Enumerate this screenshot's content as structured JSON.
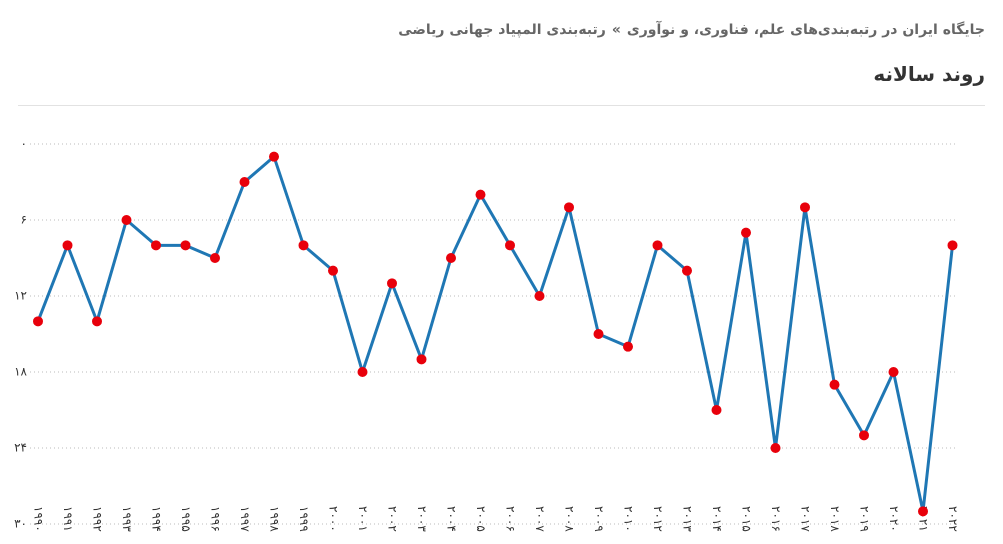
{
  "header": {
    "breadcrumb": [
      "جایگاه ایران در رتبه‌بندی‌های علم، فناوری، و نوآوری",
      "رتبه‌بندی المپیاد جهانی ریاضی"
    ],
    "separator": "»"
  },
  "chart_data": {
    "type": "line",
    "title": "روند سالانه",
    "categories": [
      {
        "value": 1990,
        "label": "۱۹۹۰"
      },
      {
        "value": 1991,
        "label": "۱۹۹۱"
      },
      {
        "value": 1992,
        "label": "۱۹۹۲"
      },
      {
        "value": 1993,
        "label": "۱۹۹۳"
      },
      {
        "value": 1994,
        "label": "۱۹۹۴"
      },
      {
        "value": 1995,
        "label": "۱۹۹۵"
      },
      {
        "value": 1996,
        "label": "۱۹۹۶"
      },
      {
        "value": 1997,
        "label": "۱۹۹۷"
      },
      {
        "value": 1998,
        "label": "۱۹۹۸"
      },
      {
        "value": 1999,
        "label": "۱۹۹۹"
      },
      {
        "value": 2000,
        "label": "۲۰۰۰"
      },
      {
        "value": 2001,
        "label": "۲۰۰۱"
      },
      {
        "value": 2002,
        "label": "۲۰۰۲"
      },
      {
        "value": 2003,
        "label": "۲۰۰۳"
      },
      {
        "value": 2004,
        "label": "۲۰۰۴"
      },
      {
        "value": 2005,
        "label": "۲۰۰۵"
      },
      {
        "value": 2006,
        "label": "۲۰۰۶"
      },
      {
        "value": 2007,
        "label": "۲۰۰۷"
      },
      {
        "value": 2008,
        "label": "۲۰۰۸"
      },
      {
        "value": 2009,
        "label": "۲۰۰۹"
      },
      {
        "value": 2010,
        "label": "۲۰۱۰"
      },
      {
        "value": 2012,
        "label": "۲۰۱۲"
      },
      {
        "value": 2013,
        "label": "۲۰۱۳"
      },
      {
        "value": 2014,
        "label": "۲۰۱۴"
      },
      {
        "value": 2015,
        "label": "۲۰۱۵"
      },
      {
        "value": 2016,
        "label": "۲۰۱۶"
      },
      {
        "value": 2017,
        "label": "۲۰۱۷"
      },
      {
        "value": 2018,
        "label": "۲۰۱۸"
      },
      {
        "value": 2019,
        "label": "۲۰۱۹"
      },
      {
        "value": 2020,
        "label": "۲۰۲۰"
      },
      {
        "value": 2021,
        "label": "۲۰۲۱"
      },
      {
        "value": 2022,
        "label": "۲۰۲۲"
      }
    ],
    "values": [
      14,
      8,
      14,
      6,
      8,
      8,
      9,
      3,
      1,
      8,
      10,
      18,
      11,
      17,
      9,
      4,
      8,
      12,
      5,
      15,
      16,
      8,
      10,
      21,
      7,
      24,
      5,
      19,
      23,
      18,
      29,
      8
    ],
    "color": "#1f77b4",
    "marker_color": "#e8000b",
    "ylim": [
      0,
      30
    ],
    "y_inverted": true,
    "yticks": [
      {
        "value": 0,
        "label": "۰"
      },
      {
        "value": 6,
        "label": "۶"
      },
      {
        "value": 12,
        "label": "۱۲"
      },
      {
        "value": 18,
        "label": "۱۸"
      },
      {
        "value": 24,
        "label": "۲۴"
      },
      {
        "value": 30,
        "label": "۳۰"
      }
    ],
    "grid": true
  }
}
